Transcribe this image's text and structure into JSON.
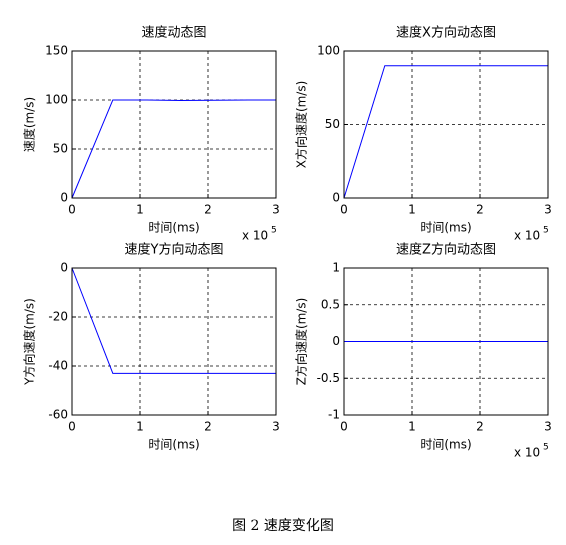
{
  "chart_data": [
    {
      "type": "line",
      "title": "速度动态图",
      "xlabel": "时间(ms)",
      "ylabel": "速度(m/s)",
      "x": [
        0,
        60000,
        110000,
        160000,
        260000,
        300000
      ],
      "values": [
        0,
        100,
        100,
        99.5,
        100,
        100
      ],
      "color": "#0000ff",
      "xlim": [
        0,
        300000
      ],
      "xticks": [
        0,
        {
          "value": 100000,
          "label": "1"
        },
        {
          "value": 200000,
          "label": "2"
        },
        {
          "value": 300000,
          "label": "3"
        }
      ],
      "ylim": [
        0,
        150
      ],
      "yticks": [
        0,
        50,
        100,
        150
      ],
      "grid": true,
      "x_scale_label": "x 10",
      "x_scale_exponent": "5"
    },
    {
      "type": "line",
      "title": "速度X方向动态图",
      "xlabel": "时间(ms)",
      "ylabel": "X方向速度(m/s)",
      "x": [
        0,
        60000,
        300000
      ],
      "values": [
        0,
        90,
        90
      ],
      "color": "#0000ff",
      "xlim": [
        0,
        300000
      ],
      "xticks": [
        0,
        {
          "value": 100000,
          "label": "1"
        },
        {
          "value": 200000,
          "label": "2"
        },
        {
          "value": 300000,
          "label": "3"
        }
      ],
      "ylim": [
        0,
        100
      ],
      "yticks": [
        0,
        50,
        100
      ],
      "grid": true,
      "x_scale_label": "x 10",
      "x_scale_exponent": "5"
    },
    {
      "type": "line",
      "title": "速度Y方向动态图",
      "xlabel": "时间(ms)",
      "ylabel": "Y方向速度(m/s)",
      "x": [
        0,
        60000,
        110000,
        300000
      ],
      "values": [
        0,
        -43,
        -43,
        -43
      ],
      "color": "#0000ff",
      "xlim": [
        0,
        300000
      ],
      "xticks": [
        0,
        {
          "value": 100000,
          "label": "1"
        },
        {
          "value": 200000,
          "label": "2"
        },
        {
          "value": 300000,
          "label": "3"
        }
      ],
      "ylim": [
        -60,
        0
      ],
      "yticks": [
        -60,
        -40,
        -20,
        0
      ],
      "grid": true
    },
    {
      "type": "line",
      "title": "速度Z方向动态图",
      "xlabel": "时间(ms)",
      "ylabel": "Z方向速度(m/s)",
      "x": [
        0,
        300000
      ],
      "values": [
        0,
        0
      ],
      "color": "#0000ff",
      "xlim": [
        0,
        300000
      ],
      "xticks": [
        0,
        {
          "value": 100000,
          "label": "1"
        },
        {
          "value": 200000,
          "label": "2"
        },
        {
          "value": 300000,
          "label": "3"
        }
      ],
      "ylim": [
        -1,
        1
      ],
      "yticks": [
        -1,
        -0.5,
        0,
        0.5,
        1
      ],
      "grid": true,
      "x_scale_label": "x 10",
      "x_scale_exponent": "5"
    }
  ],
  "caption": "图 2  速度变化图"
}
